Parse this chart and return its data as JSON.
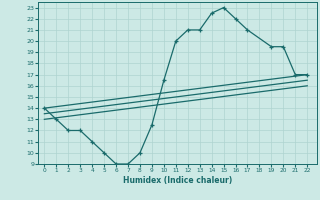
{
  "xlabel": "Humidex (Indice chaleur)",
  "bg_color": "#cce9e5",
  "line_color": "#1a6b6b",
  "grid_color": "#afd4d0",
  "ylim": [
    9,
    23.5
  ],
  "xlim": [
    -0.5,
    22.8
  ],
  "yticks": [
    9,
    10,
    11,
    12,
    13,
    14,
    15,
    16,
    17,
    18,
    19,
    20,
    21,
    22,
    23
  ],
  "xticks": [
    0,
    1,
    2,
    3,
    4,
    5,
    6,
    7,
    8,
    9,
    10,
    11,
    12,
    13,
    14,
    15,
    16,
    17,
    18,
    19,
    20,
    21,
    22
  ],
  "curve1_x": [
    0,
    1,
    2,
    3,
    4,
    5,
    6,
    7,
    8,
    9,
    10,
    11,
    12,
    13,
    14,
    15,
    16,
    17,
    19,
    20,
    21,
    22
  ],
  "curve1_y": [
    14,
    13,
    12,
    12,
    11,
    10,
    9,
    9,
    10,
    12.5,
    16.5,
    20,
    21,
    21,
    22.5,
    23,
    22,
    21,
    19.5,
    19.5,
    17,
    17
  ],
  "line2_x": [
    0,
    22
  ],
  "line2_y": [
    14,
    17
  ],
  "line3_x": [
    0,
    22
  ],
  "line3_y": [
    13.5,
    16.5
  ],
  "line4_x": [
    0,
    22
  ],
  "line4_y": [
    13.0,
    16.0
  ]
}
